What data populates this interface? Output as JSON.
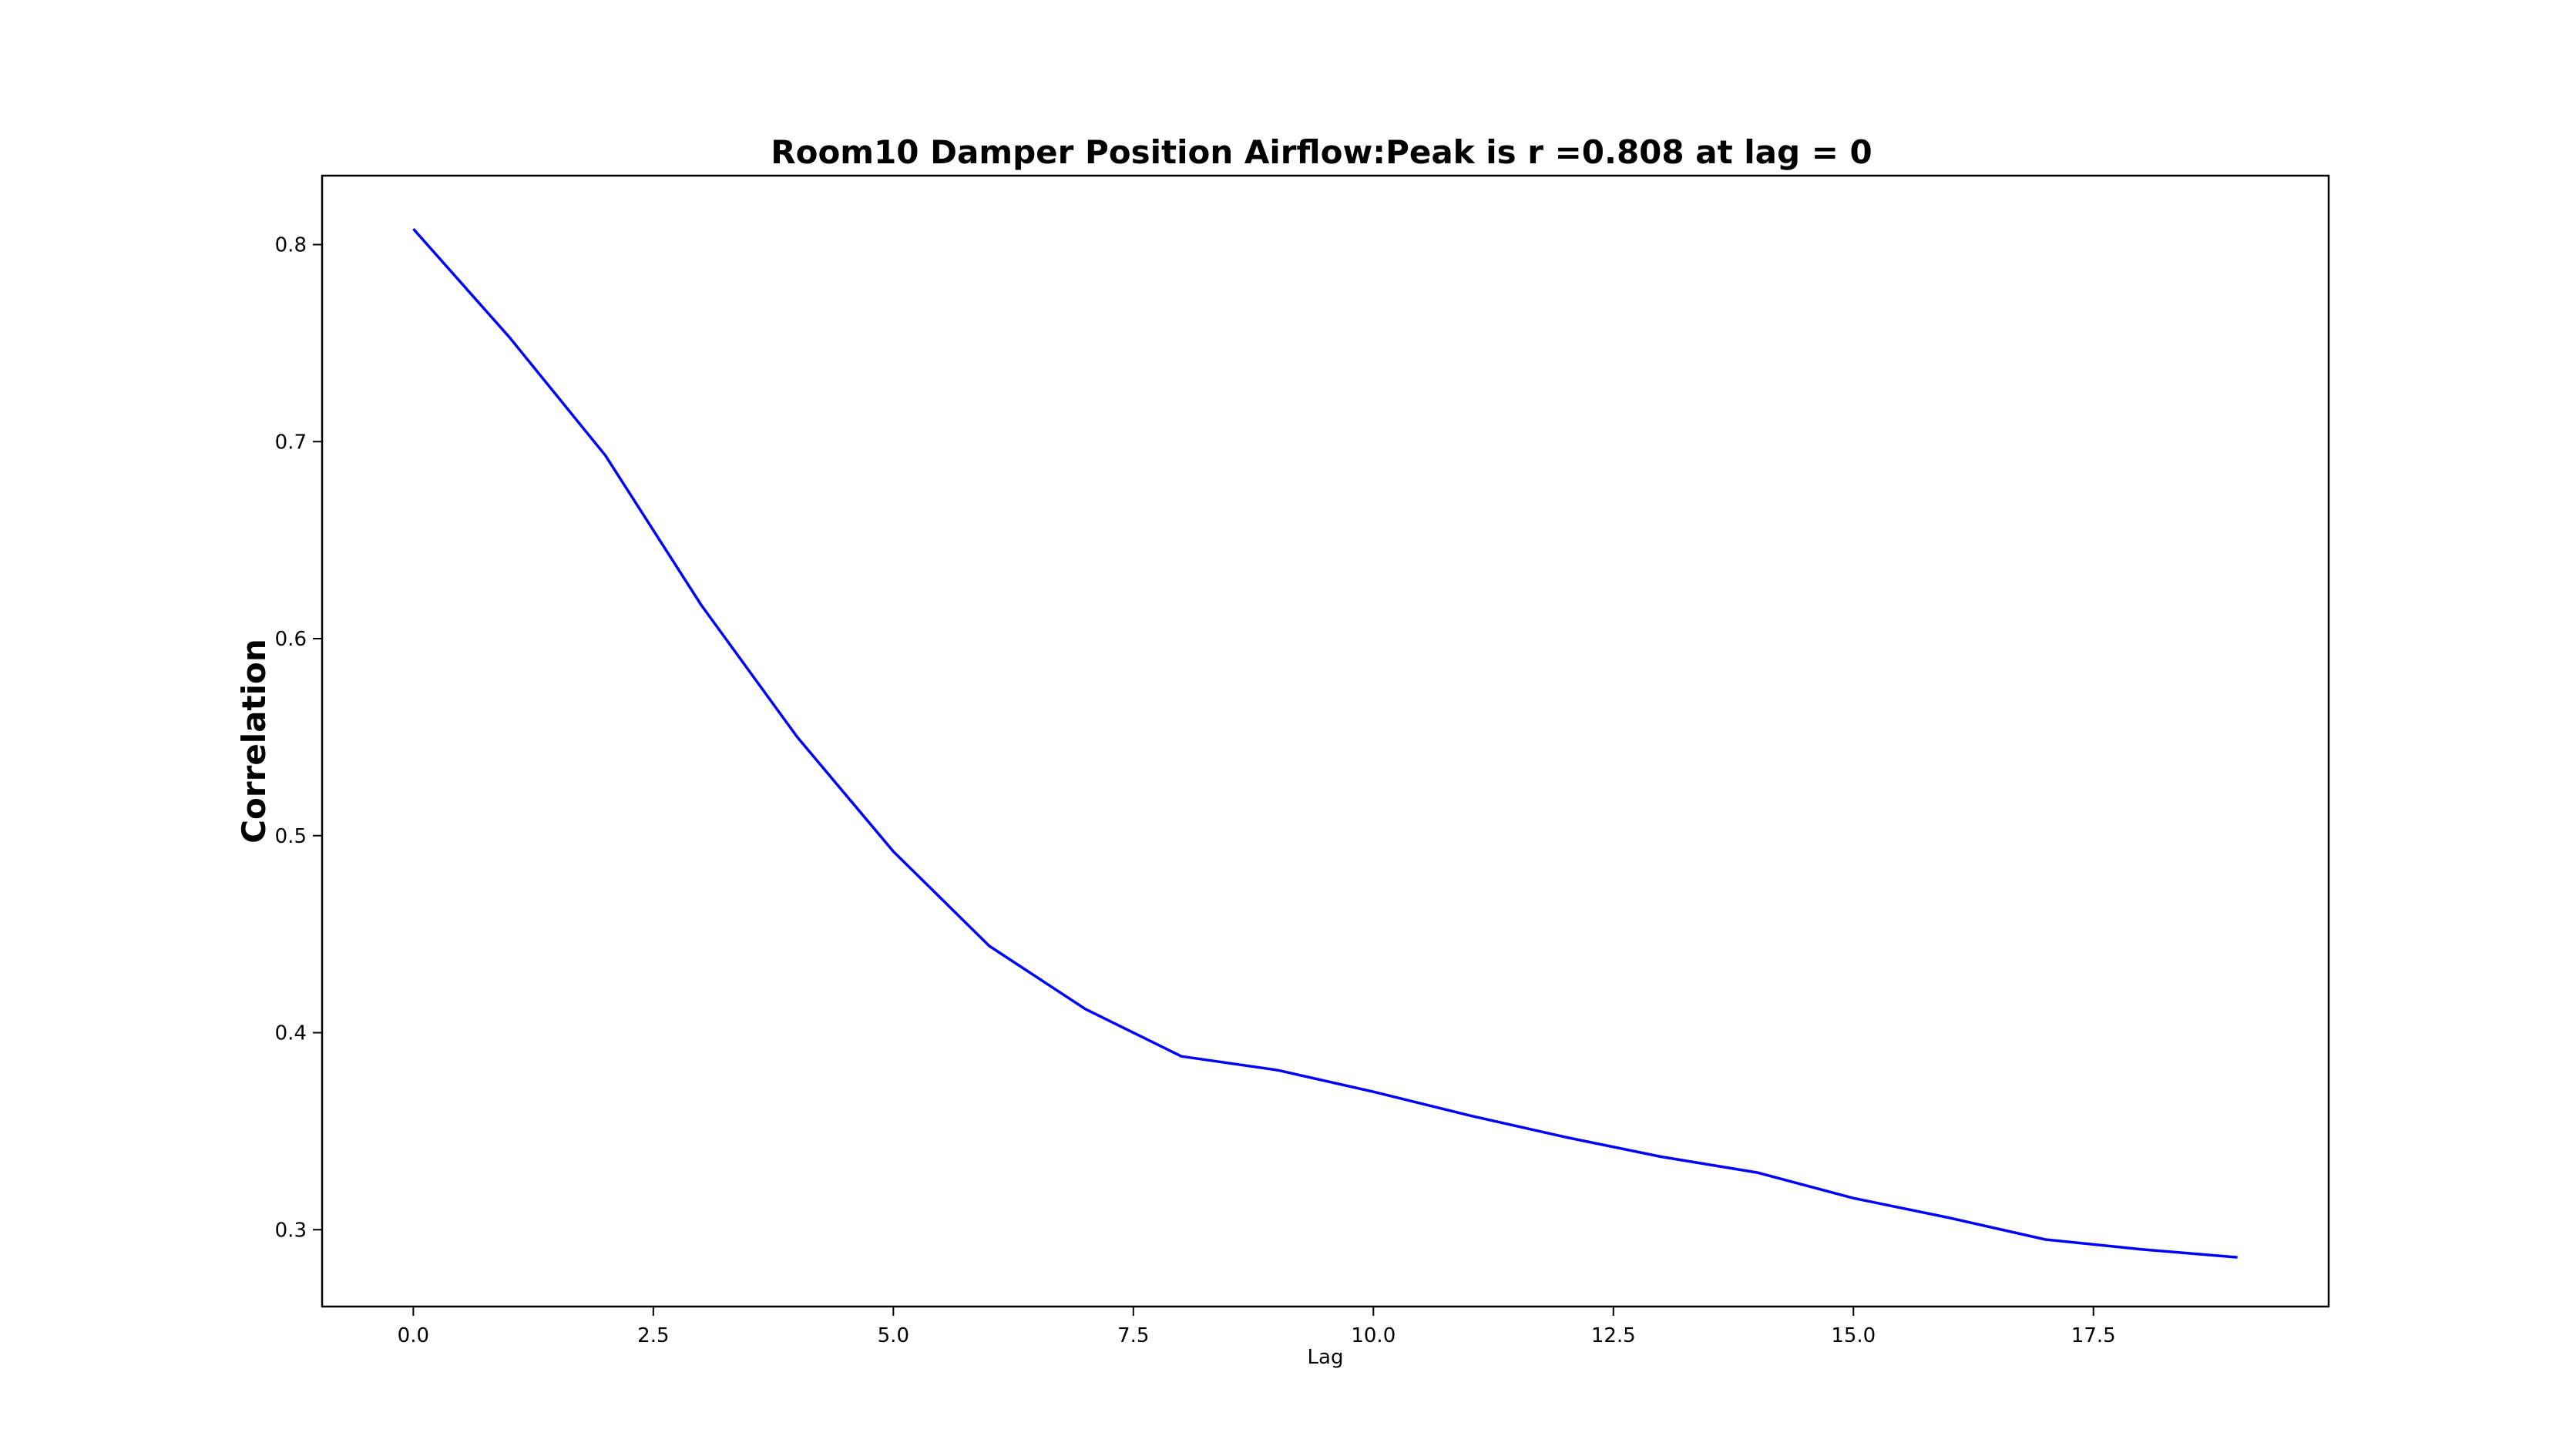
{
  "chart_data": {
    "type": "line",
    "title": "Room10 Damper Position Airflow:Peak is r =0.808 at lag = 0",
    "xlabel": "Lag",
    "ylabel": "Correlation",
    "xlim": [
      -0.95,
      19.95
    ],
    "ylim": [
      0.261,
      0.835
    ],
    "xticks": [
      0.0,
      2.5,
      5.0,
      7.5,
      10.0,
      12.5,
      15.0,
      17.5
    ],
    "xtick_labels": [
      "0.0",
      "2.5",
      "5.0",
      "7.5",
      "10.0",
      "12.5",
      "15.0",
      "17.5"
    ],
    "yticks": [
      0.3,
      0.4,
      0.5,
      0.6,
      0.7,
      0.8
    ],
    "ytick_labels": [
      "0.3",
      "0.4",
      "0.5",
      "0.6",
      "0.7",
      "0.8"
    ],
    "grid": false,
    "series": [
      {
        "color": "#0000ff",
        "x": [
          0,
          1,
          2,
          3,
          4,
          5,
          6,
          7,
          8,
          9,
          10,
          11,
          12,
          13,
          14,
          15,
          16,
          17,
          18,
          19
        ],
        "y": [
          0.808,
          0.753,
          0.693,
          0.617,
          0.55,
          0.492,
          0.444,
          0.412,
          0.388,
          0.381,
          0.37,
          0.358,
          0.347,
          0.337,
          0.329,
          0.316,
          0.306,
          0.295,
          0.29,
          0.286
        ]
      }
    ]
  }
}
